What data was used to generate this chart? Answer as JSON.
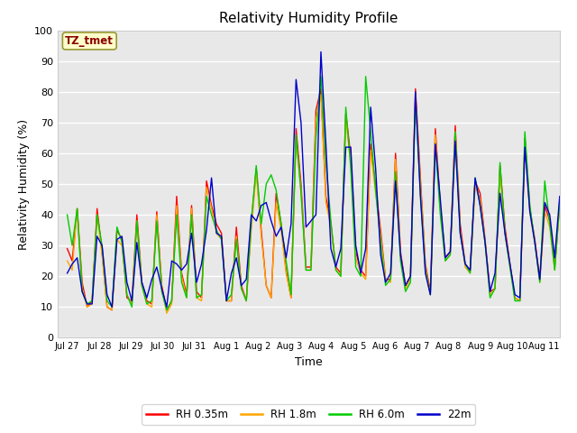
{
  "title": "Relativity Humidity Profile",
  "xlabel": "Time",
  "ylabel": "Relativity Humidity (%)",
  "ylim": [
    0,
    100
  ],
  "fig_bg_color": "#ffffff",
  "plot_bg_color": "#e8e8e8",
  "annotation_text": "TZ_tmet",
  "annotation_color": "#8b0000",
  "annotation_bg": "#ffffcc",
  "annotation_edge": "#999933",
  "series_colors": [
    "#ff0000",
    "#ffa500",
    "#00cc00",
    "#0000cc"
  ],
  "series_labels": [
    "RH 0.35m",
    "RH 1.8m",
    "RH 6.0m",
    "22m"
  ],
  "n_days": 15.5,
  "tick_labels": [
    "Jul 27",
    "Jul 28",
    "Jul 29",
    "Jul 30",
    "Jul 31",
    "Aug 1",
    "Aug 2",
    "Aug 3",
    "Aug 4",
    "Aug 5",
    "Aug 6",
    "Aug 7",
    "Aug 8",
    "Aug 9",
    "Aug 10",
    "Aug 11"
  ],
  "tick_positions": [
    0,
    1,
    2,
    3,
    4,
    5,
    6,
    7,
    8,
    9,
    10,
    11,
    12,
    13,
    14,
    15
  ],
  "rh035": [
    29,
    25,
    42,
    18,
    10,
    12,
    42,
    28,
    10,
    9,
    35,
    32,
    13,
    12,
    40,
    18,
    12,
    11,
    41,
    17,
    9,
    12,
    46,
    21,
    14,
    43,
    15,
    13,
    51,
    43,
    37,
    34,
    12,
    12,
    36,
    17,
    12,
    37,
    55,
    35,
    17,
    13,
    47,
    37,
    22,
    13,
    68,
    50,
    23,
    23,
    74,
    81,
    46,
    37,
    23,
    21,
    73,
    59,
    28,
    22,
    20,
    63,
    49,
    35,
    19,
    19,
    60,
    28,
    17,
    20,
    81,
    52,
    24,
    15,
    68,
    43,
    26,
    28,
    69,
    37,
    24,
    22,
    51,
    47,
    32,
    15,
    16,
    56,
    36,
    24,
    13,
    12,
    65,
    42,
    32,
    19,
    43,
    38,
    23,
    44
  ],
  "rh18": [
    25,
    22,
    42,
    16,
    10,
    11,
    40,
    27,
    10,
    9,
    32,
    30,
    14,
    11,
    38,
    17,
    11,
    10,
    40,
    16,
    8,
    11,
    43,
    20,
    13,
    42,
    13,
    12,
    49,
    42,
    34,
    32,
    12,
    12,
    33,
    16,
    12,
    35,
    54,
    33,
    17,
    13,
    44,
    35,
    21,
    13,
    65,
    48,
    22,
    22,
    71,
    79,
    44,
    36,
    22,
    20,
    71,
    57,
    26,
    21,
    19,
    61,
    47,
    33,
    19,
    18,
    58,
    27,
    16,
    19,
    79,
    50,
    23,
    14,
    66,
    42,
    25,
    27,
    67,
    35,
    23,
    21,
    49,
    45,
    31,
    14,
    16,
    54,
    34,
    23,
    13,
    12,
    63,
    41,
    31,
    18,
    41,
    36,
    22,
    43
  ],
  "rh60": [
    40,
    30,
    42,
    15,
    11,
    12,
    40,
    30,
    12,
    10,
    36,
    31,
    14,
    10,
    38,
    17,
    11,
    12,
    38,
    15,
    9,
    12,
    40,
    18,
    13,
    40,
    13,
    14,
    46,
    40,
    35,
    32,
    12,
    14,
    32,
    16,
    12,
    38,
    56,
    37,
    50,
    53,
    48,
    37,
    25,
    14,
    66,
    47,
    22,
    22,
    65,
    85,
    57,
    38,
    22,
    20,
    75,
    55,
    23,
    20,
    85,
    67,
    48,
    31,
    17,
    19,
    54,
    25,
    15,
    18,
    78,
    47,
    22,
    14,
    63,
    40,
    25,
    27,
    67,
    34,
    24,
    21,
    52,
    43,
    31,
    13,
    16,
    57,
    34,
    23,
    12,
    12,
    67,
    43,
    31,
    18,
    51,
    37,
    22,
    44
  ],
  "m22": [
    21,
    24,
    26,
    15,
    11,
    11,
    33,
    30,
    14,
    10,
    32,
    33,
    18,
    12,
    31,
    18,
    13,
    19,
    23,
    16,
    10,
    25,
    24,
    22,
    24,
    34,
    18,
    24,
    35,
    52,
    34,
    33,
    12,
    21,
    26,
    17,
    19,
    40,
    38,
    43,
    44,
    38,
    33,
    36,
    26,
    37,
    84,
    70,
    36,
    38,
    40,
    93,
    63,
    29,
    23,
    29,
    62,
    62,
    30,
    21,
    29,
    75,
    55,
    27,
    18,
    21,
    51,
    27,
    17,
    20,
    80,
    46,
    21,
    14,
    63,
    45,
    26,
    28,
    64,
    34,
    24,
    22,
    52,
    43,
    31,
    15,
    21,
    47,
    34,
    24,
    14,
    13,
    62,
    41,
    31,
    19,
    44,
    40,
    26,
    46
  ]
}
